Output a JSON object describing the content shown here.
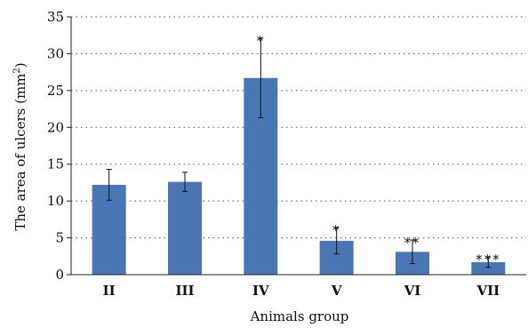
{
  "chart_data": {
    "type": "bar",
    "categories": [
      "II",
      "III",
      "IV",
      "V",
      "VI",
      "VII"
    ],
    "values": [
      12.2,
      12.6,
      26.7,
      4.6,
      3.1,
      1.7
    ],
    "errors": [
      2.1,
      1.3,
      5.4,
      1.8,
      1.6,
      0.7
    ],
    "annotations": [
      "",
      "",
      "*",
      "*",
      "**",
      "***"
    ],
    "xlabel": "Animals group",
    "ylabel": "The area of ulcers (mm",
    "ylabel_sup": "2",
    "ylabel_tail": ")",
    "ylim": [
      0,
      35
    ],
    "yticks": [
      0,
      5,
      10,
      15,
      20,
      25,
      30,
      35
    ],
    "grid": true,
    "bar_color": "#4a77b4"
  }
}
